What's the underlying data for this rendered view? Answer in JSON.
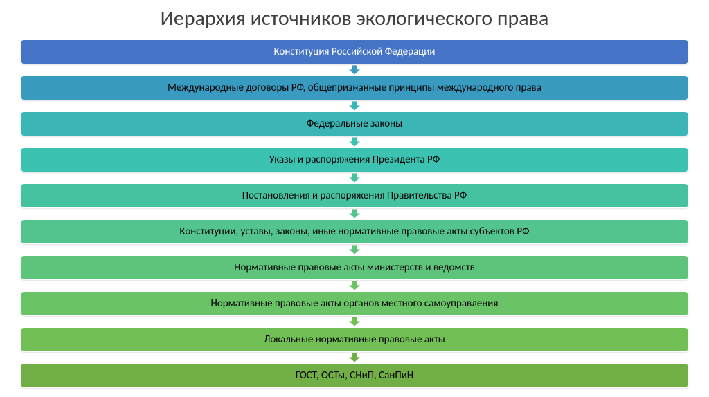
{
  "title": "Иерархия источников экологического права",
  "title_color": "#404040",
  "title_fontsize": 30,
  "background": "#ffffff",
  "level_fontsize": 15,
  "level_height": 36,
  "level_radius": 4,
  "level_text_color": "#000000",
  "first_level_text_color": "#ffffff",
  "arrow_width": 18,
  "arrow_height": 14,
  "levels": [
    {
      "label": "Конституция Российской Федерации",
      "bg": "#4573c5",
      "arrow_fill": "#4573c5"
    },
    {
      "label": "Международные договоры РФ, общепризнанные принципы международного права",
      "bg": "#3a9bc1",
      "arrow_fill": "#3a9bc1"
    },
    {
      "label": "Федеральные законы",
      "bg": "#3cb5b6",
      "arrow_fill": "#3cb5b6"
    },
    {
      "label": "Указы и распоряжения Президента РФ",
      "bg": "#3bc2b0",
      "arrow_fill": "#3bc2b0"
    },
    {
      "label": "Постановления и распоряжения Правительства РФ",
      "bg": "#47c2a1",
      "arrow_fill": "#47c2a1"
    },
    {
      "label": "Конституции, уставы, законы, иные нормативные правовые акты субъектов РФ",
      "bg": "#54c48f",
      "arrow_fill": "#54c48f"
    },
    {
      "label": "Нормативные правовые акты министерств и ведомств",
      "bg": "#5fc47b",
      "arrow_fill": "#5fc47b"
    },
    {
      "label": "Нормативные правовые акты органов местного самоуправления",
      "bg": "#6ac366",
      "arrow_fill": "#6ac366"
    },
    {
      "label": "Локальные нормативные правовые акты",
      "bg": "#72bf55",
      "arrow_fill": "#72bf55"
    },
    {
      "label": "ГОСТ, ОСТы, СНиП,  СанПиН",
      "bg": "#71ae46",
      "arrow_fill": "#71ae46"
    }
  ]
}
